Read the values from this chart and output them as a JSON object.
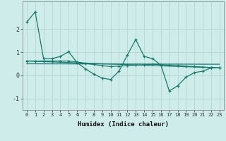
{
  "xlabel": "Humidex (Indice chaleur)",
  "background_color": "#cdecea",
  "grid_color": "#b8d8d5",
  "line_color": "#1a7a6e",
  "xlim": [
    -0.5,
    23.5
  ],
  "ylim": [
    -1.5,
    3.2
  ],
  "yticks": [
    -1,
    0,
    1,
    2
  ],
  "xticks": [
    0,
    1,
    2,
    3,
    4,
    5,
    6,
    7,
    8,
    9,
    10,
    11,
    12,
    13,
    14,
    15,
    16,
    17,
    18,
    19,
    20,
    21,
    22,
    23
  ],
  "series1_x": [
    0,
    1,
    2,
    3,
    4,
    5,
    6,
    7,
    8,
    9,
    10,
    11,
    12,
    13,
    14,
    15,
    16,
    17,
    18,
    19,
    20,
    21,
    22,
    23
  ],
  "series1_y": [
    2.3,
    2.75,
    0.72,
    0.72,
    0.82,
    1.02,
    0.55,
    0.28,
    0.05,
    -0.12,
    -0.18,
    0.18,
    0.88,
    1.55,
    0.82,
    0.72,
    0.45,
    -0.68,
    -0.45,
    -0.08,
    0.12,
    0.18,
    0.32,
    0.32
  ],
  "series2_x": [
    0,
    1,
    2,
    3,
    4,
    5,
    6,
    7,
    8,
    9,
    10,
    11,
    12,
    13,
    14,
    15,
    16,
    17,
    18,
    19,
    20,
    21,
    22,
    23
  ],
  "series2_y": [
    0.62,
    0.62,
    0.62,
    0.62,
    0.62,
    0.62,
    0.58,
    0.52,
    0.47,
    0.42,
    0.38,
    0.4,
    0.42,
    0.44,
    0.46,
    0.48,
    0.46,
    0.44,
    0.42,
    0.4,
    0.38,
    0.36,
    0.34,
    0.32
  ],
  "series3_x": [
    0,
    23
  ],
  "series3_y": [
    0.62,
    0.32
  ],
  "series4_x": [
    0,
    23
  ],
  "series4_y": [
    0.5,
    0.48
  ]
}
